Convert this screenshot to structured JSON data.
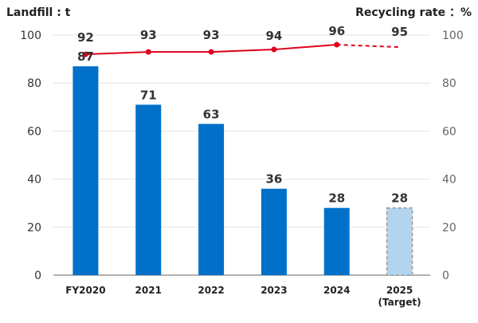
{
  "chart_data": {
    "type": "bar+line",
    "categories": [
      "FY2020",
      "2021",
      "2022",
      "2023",
      "2024",
      "2025"
    ],
    "category_sublabels": [
      "",
      "",
      "",
      "",
      "",
      "(Target)"
    ],
    "left_axis_label": "Landfill : t",
    "right_axis_label": "Recycling rate ：%",
    "ylim_left": [
      0,
      100
    ],
    "ylim_right": [
      0,
      100
    ],
    "yticks": [
      0,
      20,
      40,
      60,
      80,
      100
    ],
    "grid": true,
    "series": [
      {
        "type": "bar",
        "axis": "left",
        "values": [
          87,
          71,
          63,
          36,
          28,
          28
        ],
        "color": "#0070c8",
        "target_color": "#b3d4ee",
        "target_index": 5
      },
      {
        "type": "line",
        "axis": "right",
        "values": [
          92,
          93,
          93,
          94,
          96,
          95
        ],
        "color": "#e0001b",
        "dashed_from_index": 4,
        "marker_count": 5
      }
    ]
  }
}
